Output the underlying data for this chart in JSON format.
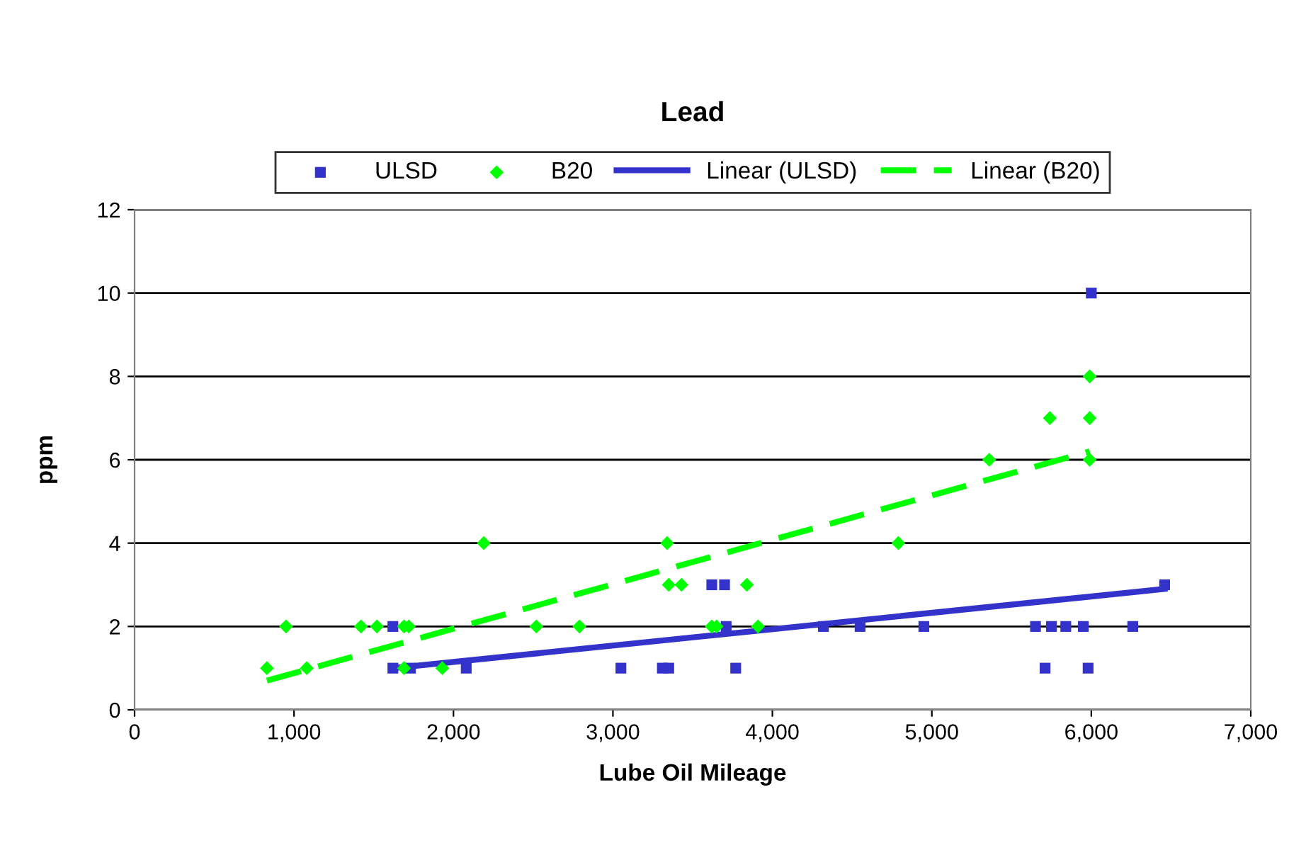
{
  "chart_data": {
    "type": "scatter",
    "title": "Lead",
    "xlabel": "Lube Oil Mileage",
    "ylabel": "ppm",
    "xlim": [
      0,
      7000
    ],
    "xticks": [
      0,
      {
        "value": 1000,
        "label": "1,000"
      },
      {
        "value": 2000,
        "label": "2,000"
      },
      {
        "value": 3000,
        "label": "3,000"
      },
      {
        "value": 4000,
        "label": "4,000"
      },
      {
        "value": 5000,
        "label": "5,000"
      },
      {
        "value": 6000,
        "label": "6,000"
      },
      {
        "value": 7000,
        "label": "7,000"
      }
    ],
    "ylim": [
      0,
      12
    ],
    "yticks": [
      0,
      2,
      4,
      6,
      8,
      10,
      12
    ],
    "grid": "y",
    "legend": "top",
    "series": [
      {
        "name": "ULSD",
        "marker": "square",
        "color": "#3333cc",
        "x": [
          1620,
          1620,
          1730,
          2080,
          3050,
          3310,
          3350,
          3770,
          5710,
          5980,
          3710,
          4320,
          4550,
          4950,
          5650,
          5750,
          5840,
          5950,
          6260,
          3620,
          3700,
          6460,
          6000
        ],
        "values": [
          2,
          1,
          1,
          1,
          1,
          1,
          1,
          1,
          1,
          1,
          2,
          2,
          2,
          2,
          2,
          2,
          2,
          2,
          2,
          3,
          3,
          3,
          10
        ]
      },
      {
        "name": "B20",
        "marker": "diamond",
        "color": "#00ff00",
        "x": [
          830,
          1080,
          1690,
          1930,
          950,
          1420,
          1520,
          1690,
          1720,
          2520,
          2790,
          3620,
          3650,
          3910,
          3350,
          3430,
          3840,
          2190,
          3340,
          4790,
          5360,
          5990,
          5740,
          5990,
          5990
        ],
        "values": [
          1,
          1,
          1,
          1,
          2,
          2,
          2,
          2,
          2,
          2,
          2,
          2,
          2,
          2,
          3,
          3,
          3,
          4,
          4,
          4,
          6,
          6,
          7,
          7,
          8
        ]
      },
      {
        "name": "Linear (ULSD)",
        "type": "line",
        "marker": "none",
        "line_style": "solid",
        "color": "#3333cc",
        "x": [
          1620,
          6460
        ],
        "values": [
          1.0,
          2.9
        ]
      },
      {
        "name": "Linear (B20)",
        "type": "line",
        "marker": "none",
        "line_style": "dashed",
        "color": "#00ff00",
        "x": [
          830,
          5990
        ],
        "values": [
          0.7,
          6.2
        ]
      }
    ]
  }
}
